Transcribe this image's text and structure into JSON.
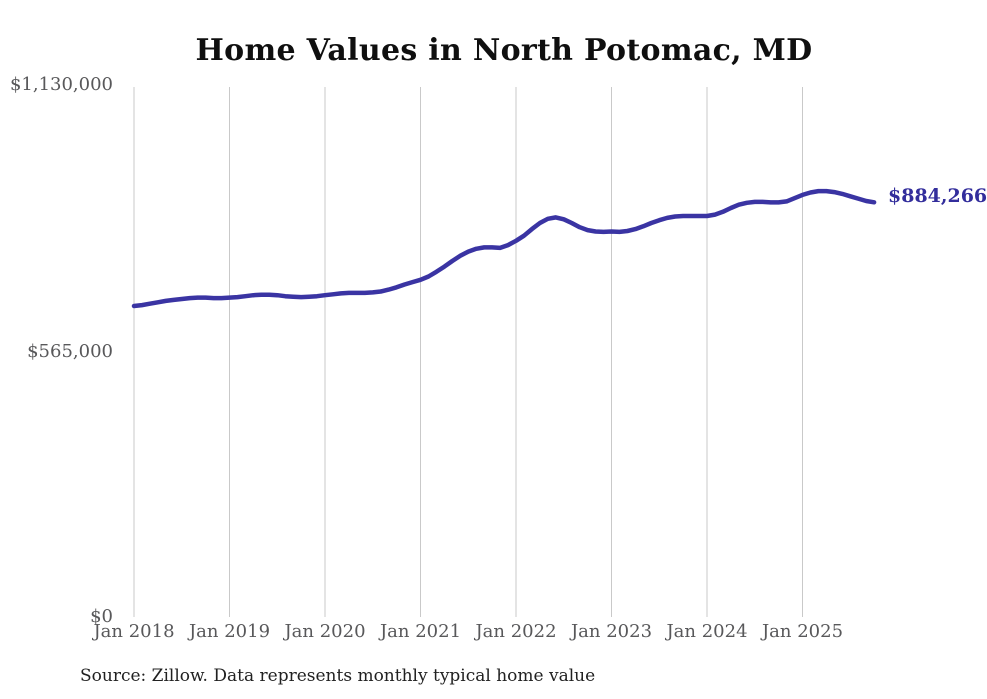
{
  "style": {
    "background": "#ffffff",
    "line_color": "#3a34a3",
    "grid_color": "#c9c9c9",
    "axis_label_color": "#58585a",
    "title_color": "#0f0f0f",
    "end_label_color": "#332e9c",
    "source_color": "#212121"
  },
  "chart_data": {
    "type": "line",
    "title": "Home Values in North Potomac, MD",
    "source_note": "Source: Zillow. Data represents monthly typical home value",
    "xlabel": "",
    "ylabel": "",
    "x_tick_labels": [
      "Jan 2018",
      "Jan 2019",
      "Jan 2020",
      "Jan 2021",
      "Jan 2022",
      "Jan 2023",
      "Jan 2024",
      "Jan 2025"
    ],
    "y_tick_labels": [
      "$0",
      "$565,000",
      "$1,130,000"
    ],
    "ylim": [
      0,
      1130000
    ],
    "grid": "vertical-only",
    "legend": "none",
    "x_start": "Jan 2018",
    "x_interval": "monthly",
    "end_value": 884266,
    "end_value_label": "$884,266",
    "series": [
      {
        "name": "Typical home value",
        "values": [
          663000,
          665000,
          668000,
          671000,
          674000,
          676000,
          678000,
          680000,
          681000,
          681000,
          680000,
          680000,
          681000,
          682000,
          684000,
          686000,
          687000,
          687000,
          686000,
          684000,
          683000,
          682000,
          683000,
          684000,
          686000,
          688000,
          690000,
          691000,
          691000,
          691000,
          692000,
          694000,
          698000,
          703000,
          709000,
          714000,
          719000,
          726000,
          736000,
          747000,
          759000,
          770000,
          779000,
          785000,
          788000,
          788000,
          787000,
          793000,
          802000,
          813000,
          827000,
          840000,
          849000,
          852000,
          848000,
          840000,
          831000,
          825000,
          822000,
          821000,
          822000,
          821000,
          823000,
          827000,
          833000,
          840000,
          846000,
          851000,
          854000,
          855000,
          855000,
          855000,
          855000,
          858000,
          864000,
          872000,
          879000,
          883000,
          885000,
          885000,
          884000,
          884000,
          886000,
          893000,
          900000,
          905000,
          908000,
          908000,
          906000,
          902000,
          897000,
          892000,
          887000,
          884266
        ]
      }
    ]
  }
}
